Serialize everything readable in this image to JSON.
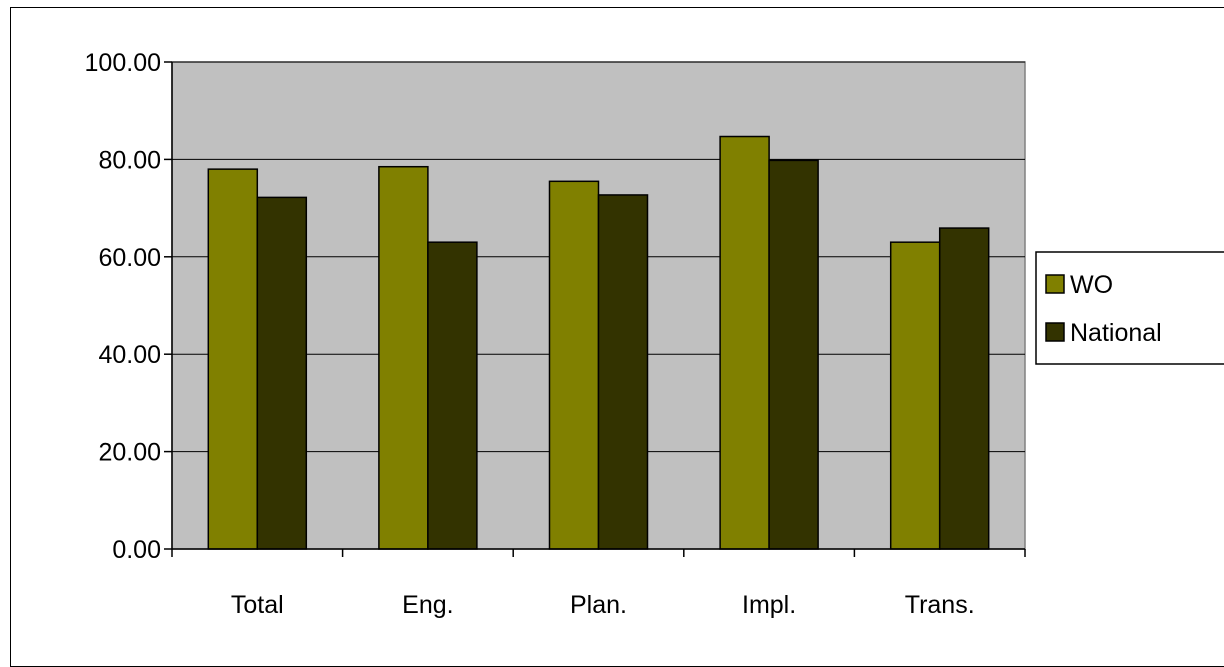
{
  "chart_data": {
    "type": "bar",
    "categories": [
      "Total",
      "Eng.",
      "Plan.",
      "Impl.",
      "Trans."
    ],
    "series": [
      {
        "name": "WO",
        "values": [
          78.0,
          78.5,
          75.5,
          84.7,
          63.0
        ],
        "color": "#808000"
      },
      {
        "name": "National",
        "values": [
          72.2,
          63.0,
          72.7,
          79.8,
          65.9
        ],
        "color": "#333300"
      }
    ],
    "ylim": [
      0,
      100
    ],
    "yticks": [
      "0.00",
      "20.00",
      "40.00",
      "60.00",
      "80.00",
      "100.00"
    ],
    "ytick_values": [
      0,
      20,
      40,
      60,
      80,
      100
    ],
    "grid": true,
    "plot_background": "#c0c0c0",
    "gridline_color": "#000000",
    "legend_position": "right"
  }
}
